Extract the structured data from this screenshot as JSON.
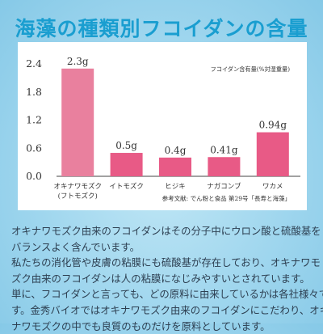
{
  "title": "海藻の種類別フコイダンの含量",
  "chart_data": {
    "type": "bar",
    "categories": [
      "オキナワモズク",
      "イトモズク",
      "ヒジキ",
      "ナガコンブ",
      "ワカメ"
    ],
    "category_sublabels": [
      "(フトモズク)",
      "",
      "",
      "",
      ""
    ],
    "values": [
      2.3,
      0.5,
      0.4,
      0.41,
      0.94
    ],
    "value_labels": [
      "2.3g",
      "0.5g",
      "0.4g",
      "0.41g",
      "0.94g"
    ],
    "y_ticks": [
      "0.0",
      "0.6",
      "1.2",
      "1.8",
      "2.4"
    ],
    "ylim": [
      0,
      2.4
    ],
    "legend_text": "フコイダン含有量(%対湿重量)",
    "source": "参考文献: でん粉と食品 第29号「長寿と海藻」",
    "colors": {
      "bar_tall": "#e9809e",
      "bar_other": "#e85a86",
      "axis": "#444444",
      "text": "#333333"
    }
  },
  "body_lines": [
    "オキナワモズク由来のフコイダンはその分子中にウロン酸と硫酸基を",
    "バランスよく含んでいます。",
    "私たちの消化管や皮膚の粘膜にも硫酸基が存在しており、オキナワモ",
    "ズク由来のフコイダンは人の粘膜になじみやすいとされています。",
    "単に、フコイダンと言っても、どの原料に由来しているかは各社様々で",
    "す。金秀バイオではオキナワモズク由来のフコイダンにこだわり、オキ",
    "ナワモズクの中でも良質のものだけを原料としています。"
  ]
}
